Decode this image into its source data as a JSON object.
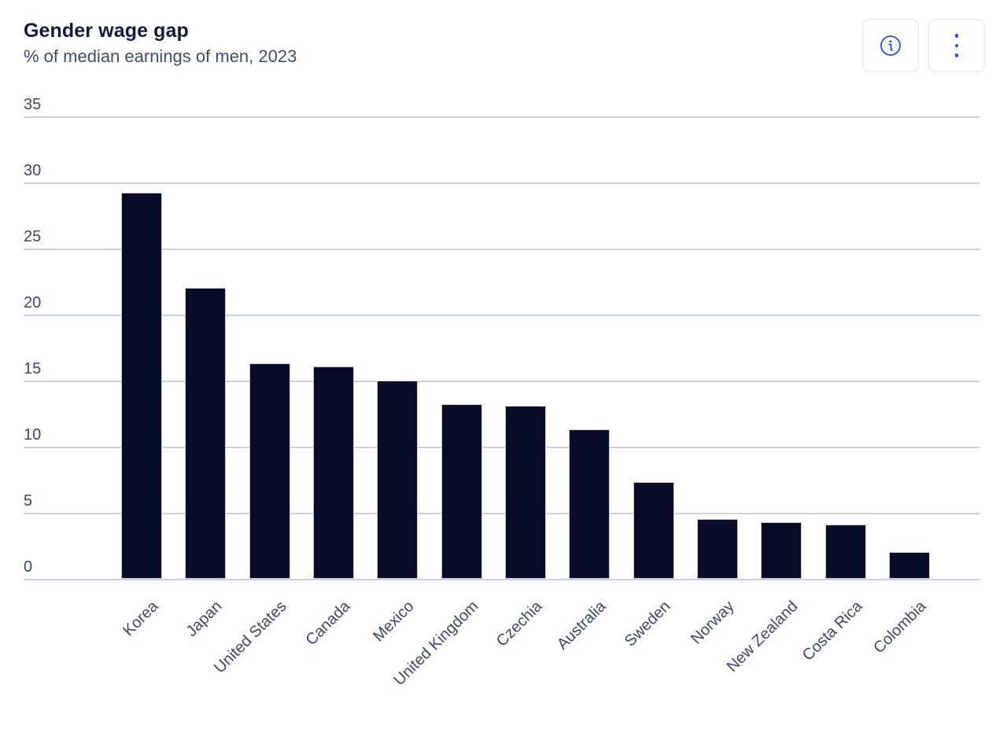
{
  "header": {
    "title": "Gender wage gap",
    "subtitle": "% of median earnings of men, 2023"
  },
  "toolbar": {
    "icons": {
      "info": "info-icon",
      "menu": "kebab-menu-icon"
    }
  },
  "colors": {
    "bar": "#080c26",
    "bar_stroke": "#c3cad9",
    "accent_blue": "#2151e0",
    "grid": "#cdd2df",
    "axis_text": "#3c4963",
    "title_text": "#111c3d",
    "subtitle_text": "#414e68",
    "background": "#ffffff"
  },
  "chart_data": {
    "type": "bar",
    "title": "Gender wage gap",
    "subtitle": "% of median earnings of men, 2023",
    "categories": [
      "Korea",
      "Japan",
      "United States",
      "Canada",
      "Mexico",
      "United Kingdom",
      "Czechia",
      "Australia",
      "Sweden",
      "Norway",
      "New Zealand",
      "Costa Rica",
      "Colombia"
    ],
    "values": [
      29.2,
      22.0,
      16.3,
      16.1,
      15.0,
      13.2,
      13.1,
      11.3,
      7.3,
      4.5,
      4.3,
      4.1,
      2.0
    ],
    "xlabel": "",
    "ylabel": "",
    "ylim": [
      0,
      35
    ],
    "yticks": [
      0,
      5,
      10,
      15,
      20,
      25,
      30,
      35
    ],
    "grid": true,
    "legend": false,
    "x_label_rotation_deg": -45
  }
}
